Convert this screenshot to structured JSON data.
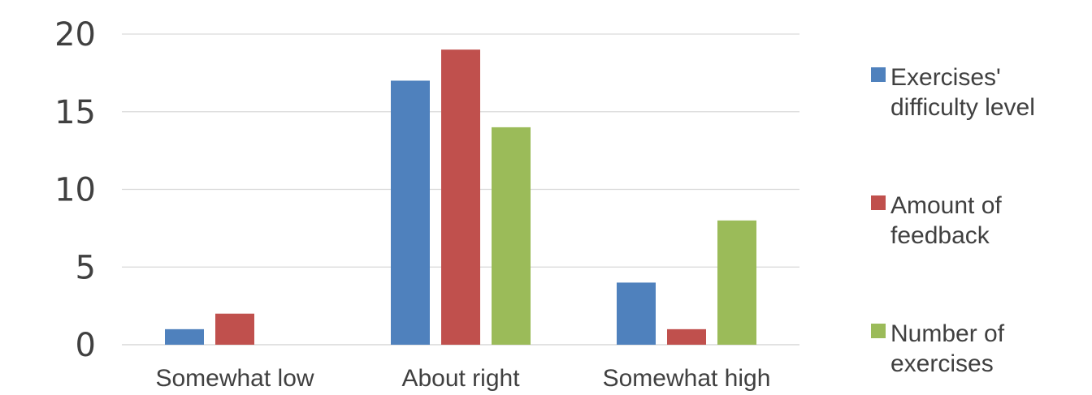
{
  "chart_data": {
    "type": "bar",
    "categories": [
      "Somewhat low",
      "About right",
      "Somewhat high"
    ],
    "series": [
      {
        "name": "Exercises' difficulty level",
        "values": [
          1,
          17,
          4
        ],
        "color": "#4f81bd"
      },
      {
        "name": "Amount of feedback",
        "values": [
          2,
          19,
          1
        ],
        "color": "#c0504d"
      },
      {
        "name": "Number of exercises",
        "values": [
          0,
          14,
          8
        ],
        "color": "#9bbb59"
      }
    ],
    "legend_labels": [
      [
        "Exercises'",
        "difficulty level"
      ],
      [
        "Amount of",
        "feedback"
      ],
      [
        "Number of",
        "exercises"
      ]
    ],
    "y_ticks": [
      "0",
      "5",
      "10",
      "15",
      "20"
    ],
    "ylim": [
      0,
      20
    ],
    "grid": true,
    "legend_position": "right"
  }
}
